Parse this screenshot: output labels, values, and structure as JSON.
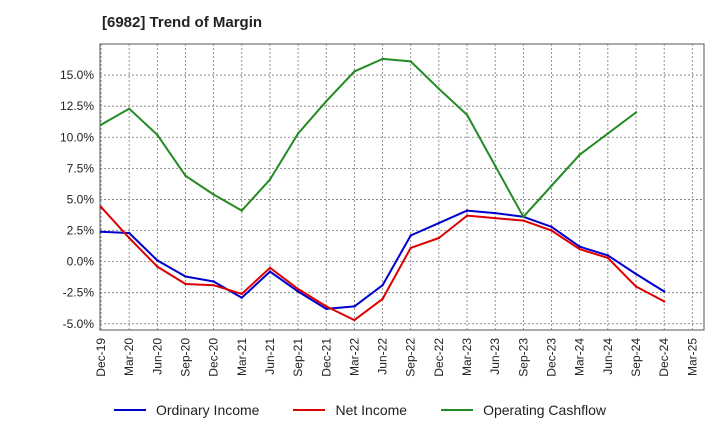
{
  "chart_data": {
    "type": "line",
    "title": "[6982]  Trend of Margin",
    "categories": [
      "Dec-19",
      "Mar-20",
      "Jun-20",
      "Sep-20",
      "Dec-20",
      "Mar-21",
      "Jun-21",
      "Sep-21",
      "Dec-21",
      "Mar-22",
      "Jun-22",
      "Sep-22",
      "Dec-22",
      "Mar-23",
      "Jun-23",
      "Sep-23",
      "Dec-23",
      "Mar-24",
      "Jun-24",
      "Sep-24",
      "Dec-24",
      "Mar-25"
    ],
    "y_ticks": [
      "15.0%",
      "12.5%",
      "10.0%",
      "7.5%",
      "5.0%",
      "2.5%",
      "0.0%",
      "-2.5%",
      "-5.0%"
    ],
    "y_tick_values": [
      15,
      12.5,
      10,
      7.5,
      5,
      2.5,
      0,
      -2.5,
      -5
    ],
    "ylim": [
      -5.5,
      17.5
    ],
    "grid": true,
    "legend_position": "bottom",
    "series": [
      {
        "name": "Ordinary Income",
        "color": "#0000cc",
        "values": [
          2.4,
          2.3,
          0.1,
          -1.2,
          -1.6,
          -2.9,
          -0.8,
          -2.4,
          -3.8,
          -3.6,
          -1.9,
          2.1,
          3.1,
          4.1,
          3.9,
          3.6,
          2.8,
          1.2,
          0.5,
          -1.0,
          -2.4,
          null
        ]
      },
      {
        "name": "Net Income",
        "color": "#dd0000",
        "values": [
          4.4,
          1.9,
          -0.4,
          -1.8,
          -1.9,
          -2.6,
          -0.5,
          -2.2,
          -3.6,
          -4.7,
          -3.0,
          1.1,
          1.9,
          3.7,
          3.5,
          3.3,
          2.5,
          1.0,
          0.3,
          -2.0,
          -3.2,
          null
        ]
      },
      {
        "name": "Operating Cashflow",
        "color": "#228b22",
        "values": [
          11.0,
          12.3,
          10.2,
          6.9,
          5.4,
          4.1,
          6.6,
          10.3,
          12.9,
          15.3,
          16.3,
          16.1,
          13.9,
          11.8,
          7.7,
          3.6,
          6.1,
          8.6,
          10.3,
          12.0,
          null,
          null
        ]
      }
    ]
  }
}
